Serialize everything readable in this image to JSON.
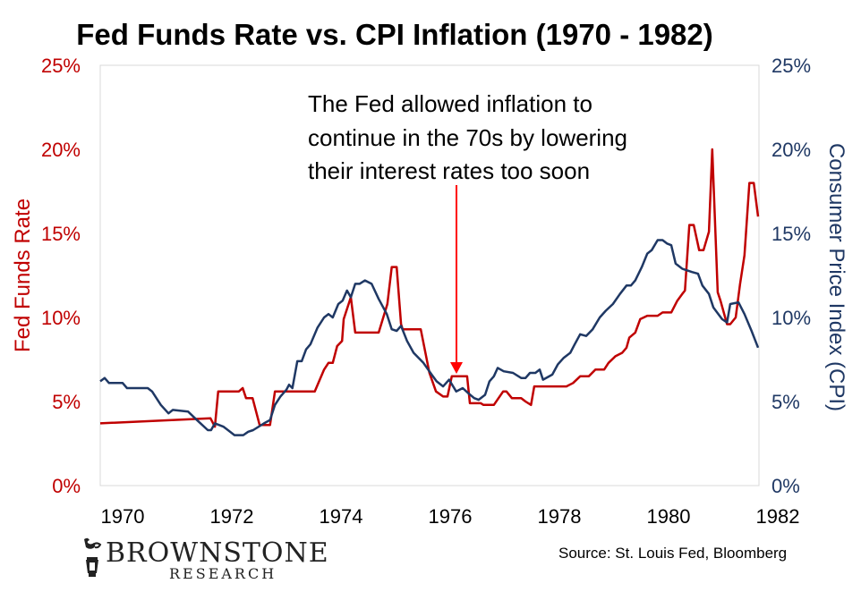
{
  "chart_data": {
    "type": "line",
    "title": "Fed Funds Rate vs. CPI Inflation (1970 - 1982)",
    "xlabel": "",
    "ylabel_left": "Fed Funds Rate",
    "ylabel_right": "Consumer Price Index (CPI)",
    "xlim": [
      1969.59,
      1981.64
    ],
    "ylim_left": [
      0,
      25
    ],
    "ylim_right": [
      0,
      25
    ],
    "x_ticks": [
      "1970",
      "1972",
      "1974",
      "1976",
      "1978",
      "1980",
      "1982"
    ],
    "x_tick_values": [
      1970,
      1972,
      1974,
      1976,
      1978,
      1980,
      1982
    ],
    "y_ticks_left": [
      "0%",
      "5%",
      "10%",
      "15%",
      "20%",
      "25%"
    ],
    "y_ticks_right": [
      "0%",
      "5%",
      "10%",
      "15%",
      "20%",
      "25%"
    ],
    "y_tick_values": [
      0,
      5,
      10,
      15,
      20,
      25
    ],
    "grid": false,
    "legend": "none",
    "annotation": {
      "lines": [
        "The Fed allowed inflation to",
        "continue in the 70s by lowering",
        "their interest rates too soon"
      ],
      "arrow_target": {
        "x": 1976.1,
        "y": 6.5
      }
    },
    "source": "Source: St. Louis Fed, Bloomberg",
    "series": [
      {
        "name": "Fed Funds Rate",
        "axis": "left",
        "color": "#c00000",
        "points": [
          [
            1969.59,
            3.7
          ],
          [
            1971.61,
            4.0
          ],
          [
            1971.69,
            3.5
          ],
          [
            1971.75,
            5.6
          ],
          [
            1972.13,
            5.6
          ],
          [
            1972.2,
            5.8
          ],
          [
            1972.26,
            5.2
          ],
          [
            1972.38,
            5.2
          ],
          [
            1972.51,
            3.6
          ],
          [
            1972.7,
            3.6
          ],
          [
            1972.79,
            5.6
          ],
          [
            1973.52,
            5.6
          ],
          [
            1973.69,
            6.9
          ],
          [
            1973.77,
            7.3
          ],
          [
            1973.85,
            7.3
          ],
          [
            1973.93,
            8.3
          ],
          [
            1974.02,
            8.6
          ],
          [
            1974.05,
            9.9
          ],
          [
            1974.18,
            11.2
          ],
          [
            1974.26,
            9.1
          ],
          [
            1974.69,
            9.1
          ],
          [
            1974.85,
            10.8
          ],
          [
            1974.93,
            13.0
          ],
          [
            1975.02,
            13.0
          ],
          [
            1975.1,
            9.6
          ],
          [
            1975.13,
            9.3
          ],
          [
            1975.46,
            9.3
          ],
          [
            1975.62,
            6.7
          ],
          [
            1975.74,
            5.6
          ],
          [
            1975.87,
            5.3
          ],
          [
            1975.95,
            5.3
          ],
          [
            1976.03,
            6.5
          ],
          [
            1976.31,
            6.5
          ],
          [
            1976.36,
            4.9
          ],
          [
            1976.56,
            4.9
          ],
          [
            1976.61,
            4.8
          ],
          [
            1976.8,
            4.8
          ],
          [
            1976.97,
            5.6
          ],
          [
            1977.03,
            5.6
          ],
          [
            1977.13,
            5.2
          ],
          [
            1977.3,
            5.2
          ],
          [
            1977.38,
            5.0
          ],
          [
            1977.48,
            4.8
          ],
          [
            1977.54,
            5.9
          ],
          [
            1978.13,
            5.9
          ],
          [
            1978.25,
            6.1
          ],
          [
            1978.38,
            6.5
          ],
          [
            1978.54,
            6.5
          ],
          [
            1978.66,
            6.9
          ],
          [
            1978.82,
            6.9
          ],
          [
            1978.9,
            7.3
          ],
          [
            1979.03,
            7.7
          ],
          [
            1979.15,
            7.9
          ],
          [
            1979.23,
            8.2
          ],
          [
            1979.28,
            8.8
          ],
          [
            1979.39,
            9.1
          ],
          [
            1979.48,
            9.9
          ],
          [
            1979.61,
            10.1
          ],
          [
            1979.8,
            10.1
          ],
          [
            1979.89,
            10.3
          ],
          [
            1980.05,
            10.3
          ],
          [
            1980.16,
            11.0
          ],
          [
            1980.25,
            11.4
          ],
          [
            1980.3,
            11.6
          ],
          [
            1980.38,
            15.5
          ],
          [
            1980.46,
            15.5
          ],
          [
            1980.56,
            14.0
          ],
          [
            1980.64,
            14.0
          ],
          [
            1980.74,
            15.1
          ],
          [
            1980.8,
            20.0
          ],
          [
            1980.9,
            11.5
          ],
          [
            1980.95,
            11.0
          ],
          [
            1981.07,
            9.6
          ],
          [
            1981.13,
            9.6
          ],
          [
            1981.23,
            10.0
          ],
          [
            1981.31,
            12.0
          ],
          [
            1981.39,
            13.7
          ],
          [
            1981.48,
            18.0
          ],
          [
            1981.56,
            18.0
          ],
          [
            1981.64,
            16.0
          ]
        ]
      },
      {
        "name": "Consumer Price Index (CPI)",
        "axis": "right",
        "color": "#1f3864",
        "points": [
          [
            1969.59,
            6.2
          ],
          [
            1969.67,
            6.4
          ],
          [
            1969.75,
            6.1
          ],
          [
            1970.0,
            6.1
          ],
          [
            1970.08,
            5.8
          ],
          [
            1970.46,
            5.8
          ],
          [
            1970.54,
            5.6
          ],
          [
            1970.7,
            4.8
          ],
          [
            1970.84,
            4.3
          ],
          [
            1970.92,
            4.5
          ],
          [
            1971.2,
            4.4
          ],
          [
            1971.36,
            3.9
          ],
          [
            1971.56,
            3.3
          ],
          [
            1971.62,
            3.3
          ],
          [
            1971.69,
            3.7
          ],
          [
            1971.85,
            3.5
          ],
          [
            1972.05,
            3.0
          ],
          [
            1972.21,
            3.0
          ],
          [
            1972.3,
            3.2
          ],
          [
            1972.39,
            3.3
          ],
          [
            1972.59,
            3.7
          ],
          [
            1972.7,
            3.9
          ],
          [
            1972.79,
            4.8
          ],
          [
            1972.89,
            5.3
          ],
          [
            1973.0,
            5.7
          ],
          [
            1973.05,
            6.0
          ],
          [
            1973.11,
            5.8
          ],
          [
            1973.2,
            7.4
          ],
          [
            1973.28,
            7.4
          ],
          [
            1973.36,
            8.1
          ],
          [
            1973.44,
            8.4
          ],
          [
            1973.57,
            9.4
          ],
          [
            1973.69,
            10.0
          ],
          [
            1973.77,
            10.2
          ],
          [
            1973.85,
            10.0
          ],
          [
            1973.95,
            10.8
          ],
          [
            1974.03,
            11.0
          ],
          [
            1974.11,
            11.6
          ],
          [
            1974.18,
            11.2
          ],
          [
            1974.26,
            12.0
          ],
          [
            1974.34,
            12.0
          ],
          [
            1974.44,
            12.2
          ],
          [
            1974.56,
            12.0
          ],
          [
            1974.69,
            11.1
          ],
          [
            1974.84,
            10.2
          ],
          [
            1974.93,
            9.3
          ],
          [
            1975.02,
            9.2
          ],
          [
            1975.1,
            9.5
          ],
          [
            1975.21,
            8.6
          ],
          [
            1975.33,
            7.9
          ],
          [
            1975.51,
            7.3
          ],
          [
            1975.66,
            6.6
          ],
          [
            1975.75,
            6.2
          ],
          [
            1975.87,
            5.9
          ],
          [
            1975.98,
            6.3
          ],
          [
            1976.11,
            5.6
          ],
          [
            1976.23,
            5.8
          ],
          [
            1976.33,
            5.5
          ],
          [
            1976.44,
            5.2
          ],
          [
            1976.52,
            5.1
          ],
          [
            1976.64,
            5.4
          ],
          [
            1976.72,
            6.2
          ],
          [
            1976.8,
            6.5
          ],
          [
            1976.87,
            7.0
          ],
          [
            1976.98,
            6.8
          ],
          [
            1977.15,
            6.7
          ],
          [
            1977.3,
            6.4
          ],
          [
            1977.38,
            6.4
          ],
          [
            1977.46,
            6.7
          ],
          [
            1977.56,
            6.7
          ],
          [
            1977.64,
            6.9
          ],
          [
            1977.7,
            6.3
          ],
          [
            1977.87,
            6.6
          ],
          [
            1977.97,
            7.2
          ],
          [
            1978.08,
            7.6
          ],
          [
            1978.2,
            7.9
          ],
          [
            1978.28,
            8.4
          ],
          [
            1978.38,
            9.0
          ],
          [
            1978.49,
            8.9
          ],
          [
            1978.61,
            9.3
          ],
          [
            1978.74,
            10.0
          ],
          [
            1978.85,
            10.4
          ],
          [
            1978.98,
            10.8
          ],
          [
            1979.11,
            11.4
          ],
          [
            1979.23,
            11.9
          ],
          [
            1979.31,
            11.9
          ],
          [
            1979.39,
            12.2
          ],
          [
            1979.51,
            13.0
          ],
          [
            1979.61,
            13.8
          ],
          [
            1979.69,
            14.0
          ],
          [
            1979.8,
            14.6
          ],
          [
            1979.89,
            14.6
          ],
          [
            1979.97,
            14.4
          ],
          [
            1980.05,
            14.3
          ],
          [
            1980.13,
            13.2
          ],
          [
            1980.25,
            12.9
          ],
          [
            1980.43,
            12.7
          ],
          [
            1980.54,
            12.6
          ],
          [
            1980.62,
            11.9
          ],
          [
            1980.74,
            11.4
          ],
          [
            1980.82,
            10.6
          ],
          [
            1980.98,
            9.9
          ],
          [
            1981.07,
            9.7
          ],
          [
            1981.13,
            10.8
          ],
          [
            1981.28,
            10.9
          ],
          [
            1981.39,
            10.2
          ],
          [
            1981.52,
            9.2
          ],
          [
            1981.64,
            8.2
          ]
        ]
      }
    ]
  },
  "branding": {
    "logo_name": "BROWNSTONE",
    "logo_sub": "RESEARCH",
    "logo_icon": "lantern-icon"
  },
  "colors": {
    "fed_funds": "#c00000",
    "cpi": "#1f3864",
    "annotation_arrow": "#ff0000",
    "plot_border": "#d9d9d9"
  }
}
